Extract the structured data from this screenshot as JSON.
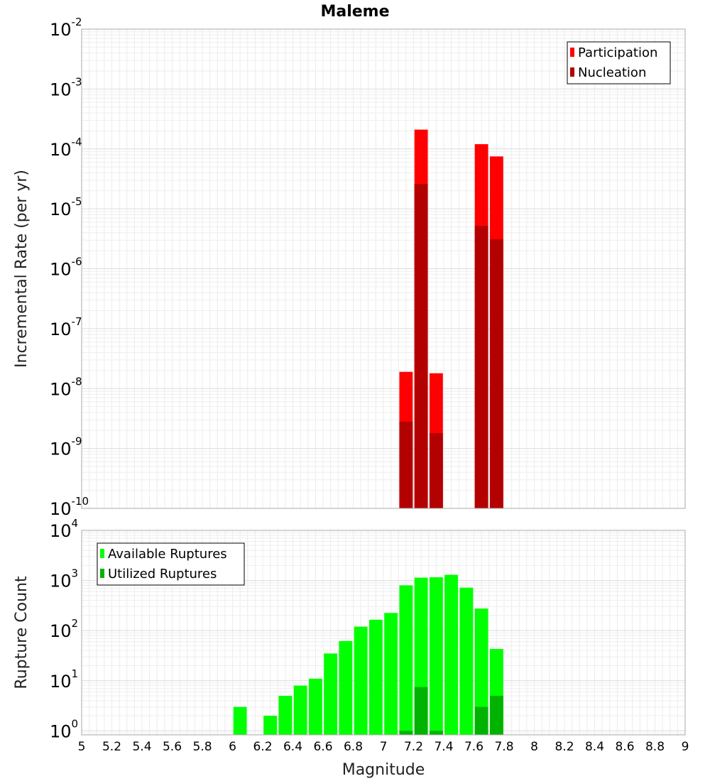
{
  "chart_data": {
    "title": "Maleme",
    "xlabel": "Magnitude",
    "xlim": [
      5,
      9
    ],
    "xticks": [
      "5",
      "5.2",
      "5.4",
      "5.6",
      "5.8",
      "6",
      "6.2",
      "6.4",
      "6.6",
      "6.8",
      "7",
      "7.2",
      "7.4",
      "7.6",
      "7.8",
      "8",
      "8.2",
      "8.4",
      "8.6",
      "8.8",
      "9"
    ],
    "bin_width": 0.1,
    "panels": [
      {
        "type": "bar",
        "scale": "log",
        "ylabel": "Incremental Rate (per yr)",
        "ylim_exp": [
          -10,
          -2
        ],
        "yticks": [
          {
            "base": "10",
            "exp": "-10"
          },
          {
            "base": "10",
            "exp": "-9"
          },
          {
            "base": "10",
            "exp": "-8"
          },
          {
            "base": "10",
            "exp": "-7"
          },
          {
            "base": "10",
            "exp": "-6"
          },
          {
            "base": "10",
            "exp": "-5"
          },
          {
            "base": "10",
            "exp": "-4"
          },
          {
            "base": "10",
            "exp": "-3"
          },
          {
            "base": "10",
            "exp": "-2"
          }
        ],
        "legend": {
          "position": "top-right"
        },
        "series": [
          {
            "name": "Participation",
            "color": "#ff0000",
            "points": [
              {
                "x": 7.15,
                "y": 1.9e-08
              },
              {
                "x": 7.25,
                "y": 0.00021
              },
              {
                "x": 7.35,
                "y": 1.8e-08
              },
              {
                "x": 7.65,
                "y": 0.00012
              },
              {
                "x": 7.75,
                "y": 7.5e-05
              }
            ]
          },
          {
            "name": "Nucleation",
            "color": "#b30000",
            "points": [
              {
                "x": 7.15,
                "y": 2.8e-09
              },
              {
                "x": 7.25,
                "y": 2.6e-05
              },
              {
                "x": 7.35,
                "y": 1.8e-09
              },
              {
                "x": 7.65,
                "y": 5.2e-06
              },
              {
                "x": 7.75,
                "y": 3.1e-06
              }
            ]
          }
        ]
      },
      {
        "type": "bar",
        "scale": "log",
        "ylabel": "Rupture Count",
        "ylim_exp": [
          -0.08,
          4
        ],
        "yticks": [
          {
            "base": "10",
            "exp": "0"
          },
          {
            "base": "10",
            "exp": "1"
          },
          {
            "base": "10",
            "exp": "2"
          },
          {
            "base": "10",
            "exp": "3"
          },
          {
            "base": "10",
            "exp": "4"
          }
        ],
        "legend": {
          "position": "top-left"
        },
        "series": [
          {
            "name": "Available Ruptures",
            "color": "#00ff00",
            "points": [
              {
                "x": 6.05,
                "y": 3
              },
              {
                "x": 6.25,
                "y": 2
              },
              {
                "x": 6.35,
                "y": 5
              },
              {
                "x": 6.45,
                "y": 8
              },
              {
                "x": 6.55,
                "y": 11
              },
              {
                "x": 6.65,
                "y": 35
              },
              {
                "x": 6.75,
                "y": 62
              },
              {
                "x": 6.85,
                "y": 120
              },
              {
                "x": 6.95,
                "y": 165
              },
              {
                "x": 7.05,
                "y": 225
              },
              {
                "x": 7.15,
                "y": 800
              },
              {
                "x": 7.25,
                "y": 1140
              },
              {
                "x": 7.35,
                "y": 1160
              },
              {
                "x": 7.45,
                "y": 1300
              },
              {
                "x": 7.55,
                "y": 720
              },
              {
                "x": 7.65,
                "y": 275
              },
              {
                "x": 7.75,
                "y": 43
              }
            ]
          },
          {
            "name": "Utilized Ruptures",
            "color": "#00b300",
            "points": [
              {
                "x": 7.15,
                "y": 1
              },
              {
                "x": 7.25,
                "y": 7.5
              },
              {
                "x": 7.35,
                "y": 1
              },
              {
                "x": 7.65,
                "y": 3
              },
              {
                "x": 7.75,
                "y": 5
              }
            ]
          }
        ]
      }
    ]
  }
}
